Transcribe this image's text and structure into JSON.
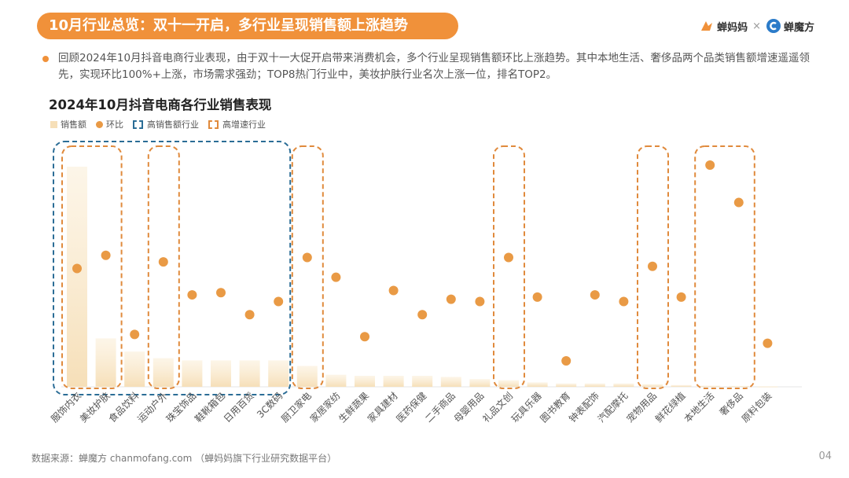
{
  "header": {
    "title": "10月行业总览：双十一开启，多行业呈现销售额上涨趋势",
    "logo_left": "蝉妈妈",
    "logo_sep": "×",
    "logo_right": "蝉魔方"
  },
  "summary": "回顾2024年10月抖音电商行业表现，由于双十一大促开启带来消费机会，多个行业呈现销售额环比上涨趋势。其中本地生活、奢侈品两个品类销售额增速遥遥领先，实现环比100%+上涨，市场需求强劲；TOP8热门行业中，美妆护肤行业名次上涨一位，排名TOP2。",
  "chart_data": {
    "type": "bar+scatter",
    "title": "2024年10月抖音电商各行业销售表现",
    "legend": [
      "销售额",
      "环比",
      "高销售额行业",
      "高增速行业"
    ],
    "categories": [
      "服饰内衣",
      "美妆护肤",
      "食品饮料",
      "运动户外",
      "珠宝饰品",
      "鞋靴箱包",
      "日用百货",
      "3C数码",
      "厨卫家电",
      "家居家纺",
      "生鲜蔬果",
      "家具建材",
      "医药保健",
      "二手商品",
      "母婴用品",
      "礼品文创",
      "玩具乐器",
      "图书教育",
      "钟表配饰",
      "汽配摩托",
      "宠物用品",
      "鲜花绿植",
      "本地生活",
      "奢侈品",
      "原料包装"
    ],
    "sales_relative": [
      100,
      22,
      16,
      13,
      12,
      12,
      12,
      12,
      9.5,
      5.5,
      5,
      5,
      5,
      4.5,
      3.5,
      3,
      2,
      1.5,
      1.5,
      1.5,
      1.2,
      0.8,
      0.5,
      0.4,
      0.2
    ],
    "mom_relative": [
      53,
      59,
      23,
      56,
      41,
      42,
      32,
      38,
      58,
      49,
      22,
      43,
      32,
      39,
      38,
      58,
      40,
      11,
      41,
      38,
      54,
      40,
      100,
      83,
      19
    ],
    "high_sales_group": [
      "服饰内衣",
      "美妆护肤",
      "食品饮料",
      "运动户外",
      "珠宝饰品",
      "鞋靴箱包",
      "日用百货",
      "3C数码"
    ],
    "high_growth_groups": [
      [
        "服饰内衣",
        "美妆护肤"
      ],
      [
        "运动户外"
      ],
      [
        "厨卫家电"
      ],
      [
        "礼品文创"
      ],
      [
        "宠物用品"
      ],
      [
        "本地生活",
        "奢侈品"
      ]
    ]
  },
  "colors": {
    "accent": "#F0913A",
    "bar": "#F6DFB8",
    "dot": "#E99A45",
    "high_sales_box": "#2B6D96",
    "high_growth_box": "#E08A3C"
  },
  "footer": {
    "source": "数据来源：蝉魔方 chanmofang.com （蝉妈妈旗下行业研究数据平台）",
    "page": "04"
  }
}
